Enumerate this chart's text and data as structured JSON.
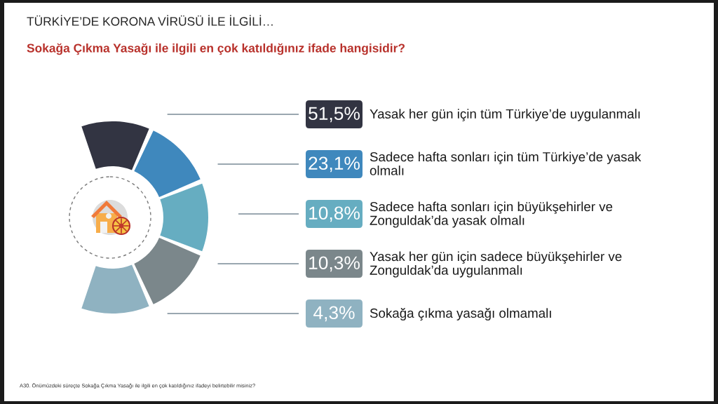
{
  "chart_data": {
    "type": "other",
    "title": "TÜRKİYE’DE KORONA VİRÜSÜ İLE İLGİLİ…",
    "subtitle": "Sokağa Çıkma Yasağı ile ilgili en çok katıldığınız ifade hangisidir?",
    "categories": [
      "Yasak her gün için tüm Türkiye’de uygulanmalı",
      "Sadece hafta sonları için tüm Türkiye’de yasak olmalı",
      "Sadece hafta sonları için büyükşehirler ve Zonguldak’da yasak olmalı",
      "Yasak her gün için sadece büyükşehirler ve Zonguldak’da uygulanmalı",
      "Sokağa çıkma yasağı olmamalı"
    ],
    "values": [
      51.5,
      23.1,
      10.8,
      10.3,
      4.3
    ],
    "value_labels": [
      "51,5%",
      "23,1%",
      "10,8%",
      "10,3%",
      "4,3%"
    ],
    "colors": [
      "#323442",
      "#3f88bd",
      "#66adc1",
      "#7b878b",
      "#8fb2c1"
    ],
    "annotations": [
      "A30. Önümüzdeki süreçte Sokağa Çıkma Yasağı ile ilgili en çok katıldığınız ifadeyi belirtebilir misiniz?"
    ]
  }
}
